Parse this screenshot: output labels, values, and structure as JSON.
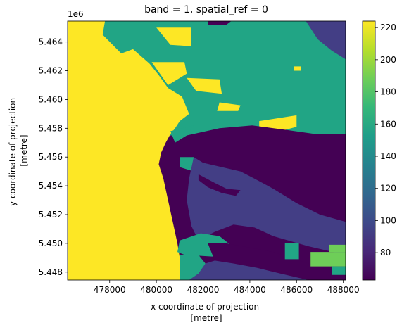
{
  "chart_data": {
    "type": "heatmap",
    "title": "band = 1, spatial_ref = 0",
    "xlabel": [
      "x coordinate of projection",
      "[metre]"
    ],
    "ylabel": [
      "y coordinate of projection",
      "[metre]"
    ],
    "y_offset_label": "1e6",
    "xlim": [
      476200,
      488100
    ],
    "ylim": [
      5.44745,
      5.46545
    ],
    "x_ticks": [
      {
        "value": 478000,
        "label": "478000"
      },
      {
        "value": 480000,
        "label": "480000"
      },
      {
        "value": 482000,
        "label": "482000"
      },
      {
        "value": 484000,
        "label": "484000"
      },
      {
        "value": 486000,
        "label": "486000"
      },
      {
        "value": 488000,
        "label": "488000"
      }
    ],
    "y_ticks": [
      {
        "value": 5.448,
        "label": "5.448"
      },
      {
        "value": 5.45,
        "label": "5.450"
      },
      {
        "value": 5.452,
        "label": "5.452"
      },
      {
        "value": 5.454,
        "label": "5.454"
      },
      {
        "value": 5.456,
        "label": "5.456"
      },
      {
        "value": 5.458,
        "label": "5.458"
      },
      {
        "value": 5.46,
        "label": "5.460"
      },
      {
        "value": 5.462,
        "label": "5.462"
      },
      {
        "value": 5.464,
        "label": "5.464"
      }
    ],
    "colorbar": {
      "colormap": "viridis",
      "range": [
        63,
        224
      ],
      "ticks": [
        {
          "value": 80,
          "label": "80"
        },
        {
          "value": 100,
          "label": "100"
        },
        {
          "value": 120,
          "label": "120"
        },
        {
          "value": 140,
          "label": "140"
        },
        {
          "value": 160,
          "label": "160"
        },
        {
          "value": 180,
          "label": "180"
        },
        {
          "value": 200,
          "label": "200"
        },
        {
          "value": 220,
          "label": "220"
        }
      ]
    },
    "classes": [
      {
        "value": 64,
        "color": "#440154"
      },
      {
        "value": 96,
        "color": "#433e85"
      },
      {
        "value": 155,
        "color": "#21a585"
      },
      {
        "value": 188,
        "color": "#6ece58"
      },
      {
        "value": 224,
        "color": "#fde725"
      }
    ],
    "regions": [
      {
        "value": 155,
        "polygon": [
          [
            476200,
            5.46545
          ],
          [
            488100,
            5.46545
          ],
          [
            488100,
            5.4575
          ],
          [
            476200,
            5.4575
          ]
        ]
      },
      {
        "value": 64,
        "polygon": [
          [
            482200,
            5.46545
          ],
          [
            483200,
            5.46545
          ],
          [
            483000,
            5.4652
          ],
          [
            482200,
            5.4652
          ]
        ]
      },
      {
        "value": 96,
        "polygon": [
          [
            486400,
            5.46545
          ],
          [
            488100,
            5.46545
          ],
          [
            488100,
            5.4628
          ],
          [
            487500,
            5.4634
          ],
          [
            486900,
            5.4642
          ]
        ]
      },
      {
        "value": 224,
        "polygon": [
          [
            476200,
            5.46545
          ],
          [
            477800,
            5.46545
          ],
          [
            477700,
            5.4645
          ],
          [
            478500,
            5.4632
          ],
          [
            479000,
            5.4635
          ],
          [
            479700,
            5.4625
          ],
          [
            480100,
            5.4617
          ],
          [
            480500,
            5.4608
          ],
          [
            481100,
            5.4602
          ],
          [
            481400,
            5.459
          ],
          [
            481000,
            5.4585
          ],
          [
            480800,
            5.458
          ],
          [
            480600,
            5.4576
          ],
          [
            480400,
            5.457
          ],
          [
            480200,
            5.4563
          ],
          [
            480100,
            5.4555
          ],
          [
            480300,
            5.4545
          ],
          [
            480500,
            5.453
          ],
          [
            480700,
            5.4515
          ],
          [
            480900,
            5.45
          ],
          [
            481000,
            5.449
          ],
          [
            481100,
            5.4478
          ],
          [
            481200,
            5.44745
          ],
          [
            476200,
            5.44745
          ]
        ]
      },
      {
        "value": 224,
        "polygon": [
          [
            480000,
            5.465
          ],
          [
            481500,
            5.465
          ],
          [
            481500,
            5.4637
          ],
          [
            480600,
            5.4638
          ]
        ]
      },
      {
        "value": 224,
        "polygon": [
          [
            479800,
            5.4626
          ],
          [
            481200,
            5.4626
          ],
          [
            481300,
            5.4618
          ],
          [
            480500,
            5.461
          ]
        ]
      },
      {
        "value": 224,
        "polygon": [
          [
            481300,
            5.4615
          ],
          [
            482700,
            5.4614
          ],
          [
            482800,
            5.4604
          ],
          [
            481700,
            5.4606
          ]
        ]
      },
      {
        "value": 224,
        "polygon": [
          [
            482700,
            5.4598
          ],
          [
            483600,
            5.4596
          ],
          [
            483500,
            5.4592
          ],
          [
            482600,
            5.4592
          ]
        ]
      },
      {
        "value": 224,
        "polygon": [
          [
            484400,
            5.4585
          ],
          [
            486000,
            5.4589
          ],
          [
            486000,
            5.4581
          ],
          [
            485300,
            5.4578
          ],
          [
            484400,
            5.4581
          ]
        ]
      },
      {
        "value": 224,
        "polygon": [
          [
            485900,
            5.4623
          ],
          [
            486200,
            5.4623
          ],
          [
            486200,
            5.462
          ],
          [
            485900,
            5.462
          ]
        ]
      },
      {
        "value": 155,
        "polygon": [
          [
            480600,
            5.4578
          ],
          [
            481600,
            5.4582
          ],
          [
            481300,
            5.4575
          ],
          [
            480800,
            5.457
          ]
        ]
      },
      {
        "value": 64,
        "polygon": [
          [
            481300,
            5.4575
          ],
          [
            482700,
            5.458
          ],
          [
            484100,
            5.4582
          ],
          [
            485500,
            5.4579
          ],
          [
            486800,
            5.4576
          ],
          [
            488100,
            5.4576
          ],
          [
            488100,
            5.451
          ],
          [
            486000,
            5.4525
          ],
          [
            485000,
            5.4538
          ],
          [
            484200,
            5.4545
          ],
          [
            483400,
            5.455
          ],
          [
            482600,
            5.4552
          ],
          [
            482000,
            5.4555
          ],
          [
            481600,
            5.456
          ],
          [
            481300,
            5.4562
          ]
        ]
      },
      {
        "value": 155,
        "polygon": [
          [
            481000,
            5.456
          ],
          [
            481600,
            5.456
          ],
          [
            481900,
            5.4554
          ],
          [
            481600,
            5.455
          ],
          [
            481000,
            5.4553
          ]
        ]
      },
      {
        "value": 96,
        "polygon": [
          [
            481600,
            5.456
          ],
          [
            482000,
            5.4556
          ],
          [
            482800,
            5.4553
          ],
          [
            483600,
            5.455
          ],
          [
            484200,
            5.4545
          ],
          [
            485000,
            5.4538
          ],
          [
            486000,
            5.4528
          ],
          [
            487000,
            5.452
          ],
          [
            488100,
            5.4515
          ],
          [
            488100,
            5.4492
          ],
          [
            486500,
            5.4498
          ],
          [
            485000,
            5.4505
          ],
          [
            484200,
            5.4511
          ],
          [
            483300,
            5.4513
          ],
          [
            482500,
            5.4508
          ],
          [
            481800,
            5.4502
          ],
          [
            481500,
            5.4512
          ],
          [
            481300,
            5.453
          ],
          [
            481400,
            5.4545
          ]
        ]
      },
      {
        "value": 64,
        "polygon": [
          [
            481800,
            5.4548
          ],
          [
            482500,
            5.4542
          ],
          [
            483000,
            5.4538
          ],
          [
            483600,
            5.4537
          ],
          [
            483400,
            5.4533
          ],
          [
            482800,
            5.4535
          ],
          [
            482200,
            5.4539
          ],
          [
            481800,
            5.4544
          ]
        ]
      },
      {
        "value": 155,
        "polygon": [
          [
            481000,
            5.4502
          ],
          [
            481900,
            5.4507
          ],
          [
            482700,
            5.4505
          ],
          [
            483400,
            5.4496
          ],
          [
            483200,
            5.449
          ],
          [
            482200,
            5.4491
          ],
          [
            481200,
            5.4492
          ],
          [
            480900,
            5.4494
          ]
        ]
      },
      {
        "value": 155,
        "polygon": [
          [
            481000,
            5.4492
          ],
          [
            481800,
            5.4492
          ],
          [
            482100,
            5.4486
          ],
          [
            481900,
            5.4478
          ],
          [
            481500,
            5.4474
          ],
          [
            481000,
            5.4474
          ]
        ]
      },
      {
        "value": 64,
        "polygon": [
          [
            482200,
            5.45
          ],
          [
            483000,
            5.45
          ],
          [
            484000,
            5.4497
          ],
          [
            485000,
            5.4494
          ],
          [
            486000,
            5.4489
          ],
          [
            487000,
            5.4483
          ],
          [
            488100,
            5.448
          ],
          [
            488100,
            5.44745
          ],
          [
            486500,
            5.44745
          ],
          [
            485300,
            5.4479
          ],
          [
            484300,
            5.4483
          ],
          [
            483300,
            5.4486
          ],
          [
            482500,
            5.4488
          ]
        ]
      },
      {
        "value": 96,
        "polygon": [
          [
            481400,
            5.44745
          ],
          [
            486500,
            5.44745
          ],
          [
            485300,
            5.4479
          ],
          [
            484300,
            5.4483
          ],
          [
            483300,
            5.4486
          ],
          [
            482500,
            5.4488
          ],
          [
            482100,
            5.4486
          ],
          [
            481800,
            5.4479
          ]
        ]
      },
      {
        "value": 155,
        "polygon": [
          [
            485500,
            5.45
          ],
          [
            486100,
            5.45
          ],
          [
            486100,
            5.4489
          ],
          [
            485500,
            5.4489
          ]
        ]
      },
      {
        "value": 188,
        "polygon": [
          [
            486600,
            5.4494
          ],
          [
            488100,
            5.4494
          ],
          [
            488100,
            5.4484
          ],
          [
            486600,
            5.4484
          ]
        ]
      },
      {
        "value": 188,
        "polygon": [
          [
            487400,
            5.4499
          ],
          [
            488100,
            5.4499
          ],
          [
            488100,
            5.4494
          ],
          [
            487400,
            5.4494
          ]
        ]
      },
      {
        "value": 155,
        "polygon": [
          [
            487500,
            5.4484
          ],
          [
            488100,
            5.4484
          ],
          [
            488100,
            5.4478
          ],
          [
            487500,
            5.4478
          ]
        ]
      }
    ]
  }
}
